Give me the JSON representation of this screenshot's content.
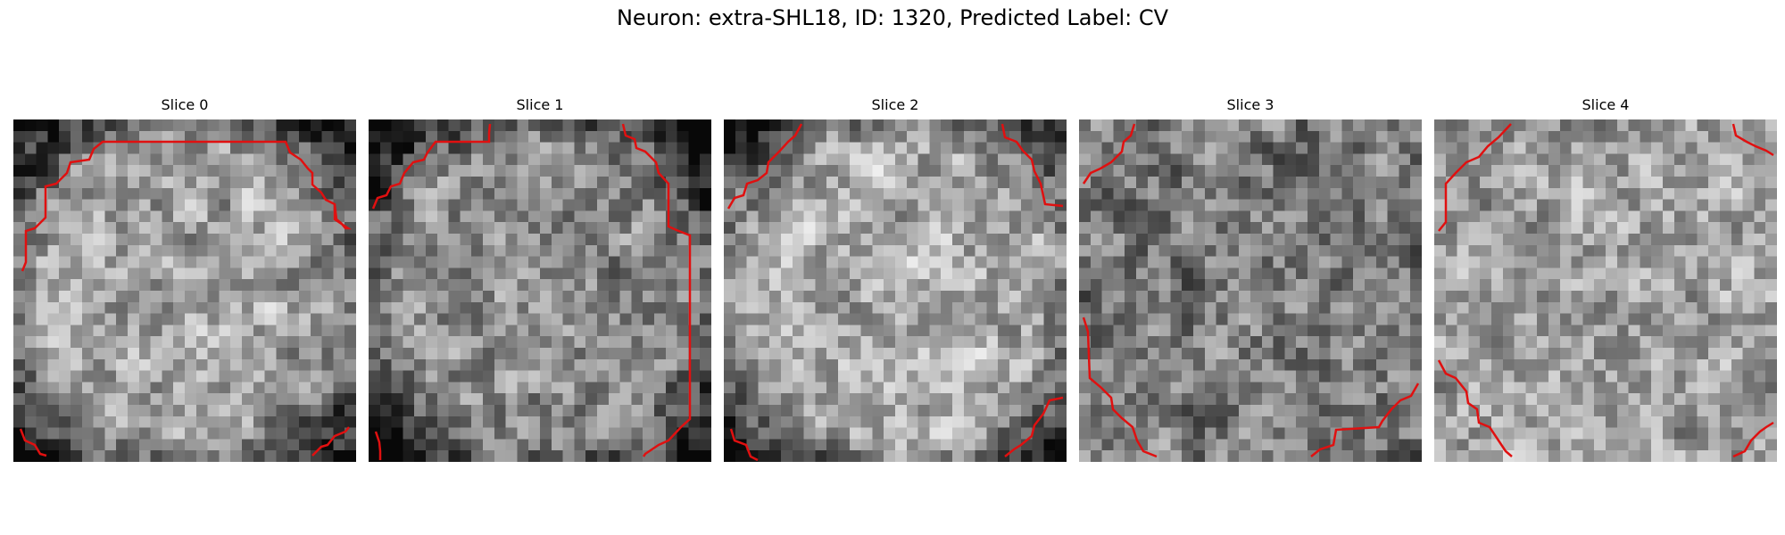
{
  "figure": {
    "title": "Neuron: extra-SHL18, ID: 1320, Predicted Label: CV"
  },
  "panels": [
    {
      "title": "Slice 0",
      "seed": 11,
      "bright": 0.62
    },
    {
      "title": "Slice 1",
      "seed": 23,
      "bright": 0.55
    },
    {
      "title": "Slice 2",
      "seed": 37,
      "bright": 0.66
    },
    {
      "title": "Slice 3",
      "seed": 41,
      "bright": 0.48
    },
    {
      "title": "Slice 4",
      "seed": 53,
      "bright": 0.63
    }
  ],
  "colors": {
    "contour": "#e01010"
  }
}
